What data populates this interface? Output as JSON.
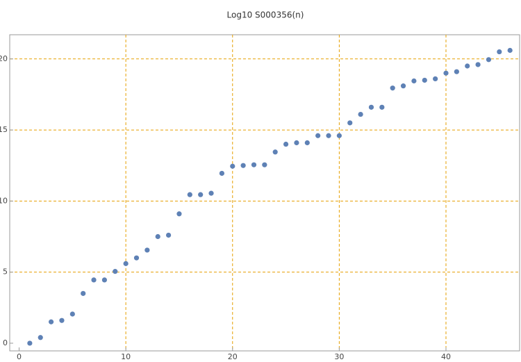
{
  "chart_data": {
    "type": "scatter",
    "title": "Log10 S000356(n)",
    "x": [
      1,
      2,
      3,
      4,
      5,
      6,
      7,
      8,
      9,
      10,
      11,
      12,
      13,
      14,
      15,
      16,
      17,
      18,
      19,
      20,
      21,
      22,
      23,
      24,
      25,
      26,
      27,
      28,
      29,
      30,
      31,
      32,
      33,
      34,
      35,
      36,
      37,
      38,
      39,
      40,
      41,
      42,
      43,
      44,
      45,
      46
    ],
    "series": [
      {
        "color": "#5e81b5",
        "values": [
          0,
          0.4,
          1.5,
          1.6,
          2.05,
          3.5,
          4.45,
          4.45,
          5.05,
          5.6,
          6.0,
          6.55,
          7.5,
          7.6,
          9.1,
          10.45,
          10.45,
          10.55,
          11.95,
          12.45,
          12.5,
          12.55,
          12.55,
          13.45,
          14.0,
          14.1,
          14.1,
          14.6,
          14.6,
          14.6,
          15.5,
          16.1,
          16.6,
          16.6,
          17.95,
          18.1,
          18.45,
          18.5,
          18.6,
          19.0,
          19.1,
          19.5,
          19.6,
          19.95,
          20.5,
          20.6
        ]
      }
    ],
    "xlim": [
      -0.88,
      46.9
    ],
    "ylim": [
      -0.54,
      21.7
    ],
    "xticks": [
      0,
      10,
      20,
      30,
      40
    ],
    "yticks": [
      0,
      5,
      10,
      15,
      20
    ],
    "xgrid": [
      10,
      20,
      30,
      40
    ],
    "ygrid": [
      5,
      10,
      15,
      20
    ],
    "grid_color": "#e69f00"
  }
}
